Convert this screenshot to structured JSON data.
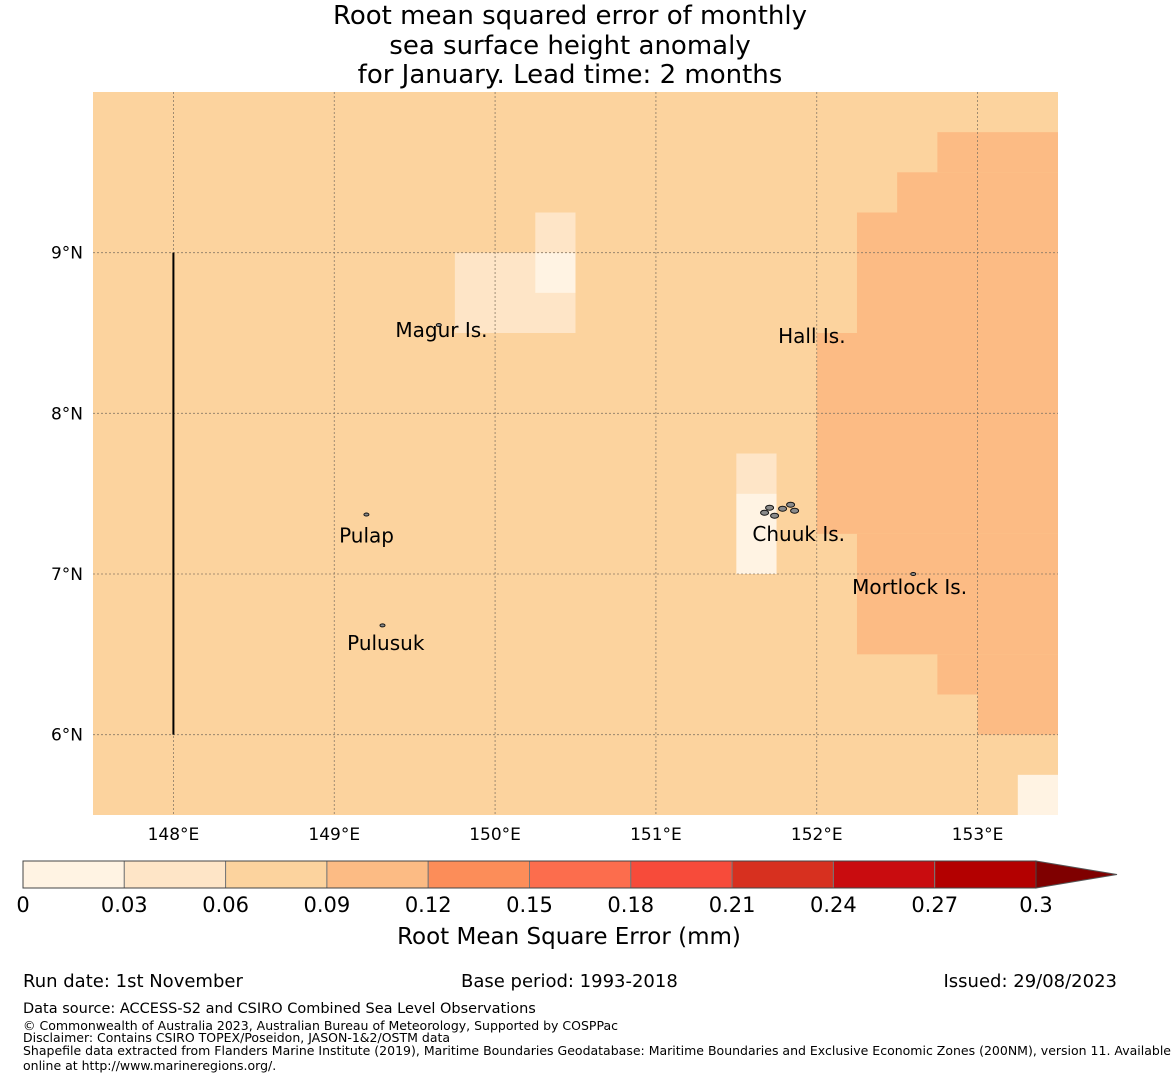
{
  "title": {
    "line1": "Root mean squared error of monthly",
    "line2": "sea surface height anomaly",
    "line3": "for January. Lead time: 2 months"
  },
  "map": {
    "lon_range": [
      147.5,
      153.5
    ],
    "lat_range": [
      5.5,
      10.0
    ],
    "lon_ticks": [
      {
        "value": 148,
        "label": "148°E"
      },
      {
        "value": 149,
        "label": "149°E"
      },
      {
        "value": 150,
        "label": "150°E"
      },
      {
        "value": 151,
        "label": "151°E"
      },
      {
        "value": 152,
        "label": "152°E"
      },
      {
        "value": 153,
        "label": "153°E"
      }
    ],
    "lat_ticks": [
      {
        "value": 9,
        "label": "9°N"
      },
      {
        "value": 8,
        "label": "8°N"
      },
      {
        "value": 7,
        "label": "7°N"
      },
      {
        "value": 6,
        "label": "6°N"
      }
    ],
    "base_value": 0.075,
    "cells": [
      {
        "lon": [
          152.75,
          153.5
        ],
        "lat": [
          9.5,
          9.75
        ],
        "value": 0.1
      },
      {
        "lon": [
          152.5,
          153.5
        ],
        "lat": [
          9.25,
          9.5
        ],
        "value": 0.1
      },
      {
        "lon": [
          152.25,
          153.5
        ],
        "lat": [
          8.5,
          9.25
        ],
        "value": 0.1
      },
      {
        "lon": [
          152.0,
          153.5
        ],
        "lat": [
          7.25,
          8.5
        ],
        "value": 0.1
      },
      {
        "lon": [
          152.25,
          153.5
        ],
        "lat": [
          6.5,
          7.25
        ],
        "value": 0.1
      },
      {
        "lon": [
          152.75,
          153.5
        ],
        "lat": [
          6.25,
          6.5
        ],
        "value": 0.1
      },
      {
        "lon": [
          153.0,
          153.5
        ],
        "lat": [
          6.0,
          6.25
        ],
        "value": 0.1
      },
      {
        "lon": [
          149.75,
          150.5
        ],
        "lat": [
          8.5,
          9.0
        ],
        "value": 0.045
      },
      {
        "lon": [
          150.25,
          150.5
        ],
        "lat": [
          9.0,
          9.25
        ],
        "value": 0.045
      },
      {
        "lon": [
          150.25,
          150.5
        ],
        "lat": [
          8.75,
          9.0
        ],
        "value": 0.02
      },
      {
        "lon": [
          151.5,
          151.75
        ],
        "lat": [
          7.5,
          7.75
        ],
        "value": 0.045
      },
      {
        "lon": [
          151.5,
          151.75
        ],
        "lat": [
          7.0,
          7.5
        ],
        "value": 0.02
      },
      {
        "lon": [
          153.25,
          153.5
        ],
        "lat": [
          5.5,
          5.75
        ],
        "value": 0.02
      }
    ],
    "places": [
      {
        "name": "Magur Is.",
        "lon": 149.65,
        "lat": 8.55,
        "label_lon": 149.38,
        "label_lat": 8.52
      },
      {
        "name": "Hall Is.",
        "lon": 151.8,
        "lat": 8.5,
        "label_lon": 151.76,
        "label_lat": 8.48
      },
      {
        "name": "Pulap",
        "lon": 149.2,
        "lat": 7.37,
        "label_lon": 149.03,
        "label_lat": 7.24
      },
      {
        "name": "Chuuk Is.",
        "lon": 151.8,
        "lat": 7.4,
        "label_lon": 151.6,
        "label_lat": 7.25
      },
      {
        "name": "Mortlock Is.",
        "lon": 152.6,
        "lat": 7.0,
        "label_lon": 152.22,
        "label_lat": 6.92
      },
      {
        "name": "Pulusuk",
        "lon": 149.3,
        "lat": 6.68,
        "label_lon": 149.08,
        "label_lat": 6.57
      }
    ],
    "boundary_line": {
      "lon": 148.0,
      "lat": [
        6.0,
        9.0
      ]
    }
  },
  "colorbar": {
    "label": "Root Mean Square Error (mm)",
    "bounds": [
      0,
      0.03,
      0.06,
      0.09,
      0.12,
      0.15,
      0.18,
      0.21,
      0.24,
      0.27,
      0.3
    ],
    "tick_labels": [
      "0",
      "0.03",
      "0.06",
      "0.09",
      "0.12",
      "0.15",
      "0.18",
      "0.21",
      "0.24",
      "0.27",
      "0.3"
    ],
    "colors": [
      "#fff3e3",
      "#fee5c7",
      "#fcd39e",
      "#fcbb84",
      "#fc8d59",
      "#fc6d4d",
      "#f74b3a",
      "#d7301f",
      "#c90c0f",
      "#b30000"
    ],
    "extend_color": "#7f0000"
  },
  "footer": {
    "run_date": "Run date: 1st November",
    "base_period": "Base period: 1993-2018",
    "issued": "Issued: 29/08/2023",
    "data_source": "Data source: ACCESS-S2 and CSIRO Combined Sea Level Observations",
    "copyright": "© Commonwealth of Australia 2023, Australian Bureau of Meteorology, Supported by COSPPac",
    "disclaimer": "Disclaimer: Contains CSIRO TOPEX/Poseidon, JASON-1&2/OSTM data",
    "shapefile_line1": "Shapefile data extracted from Flanders Marine Institute (2019), Maritime Boundaries Geodatabase: Maritime Boundaries and Exclusive Economic Zones (200NM), version 11. Available",
    "shapefile_line2": "online at http://www.marineregions.org/."
  }
}
